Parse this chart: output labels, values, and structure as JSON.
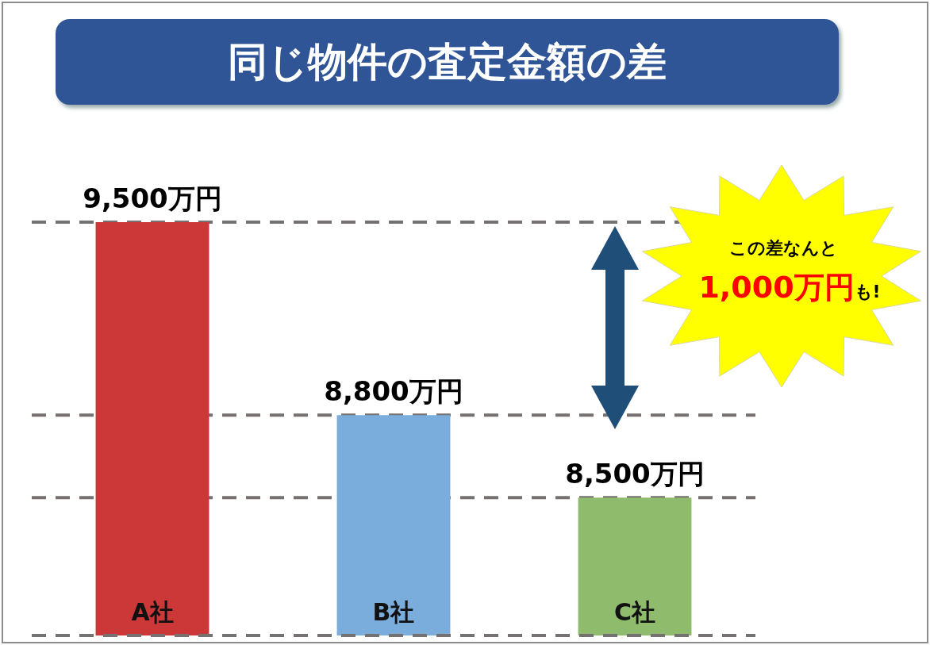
{
  "chart_data": {
    "type": "bar",
    "title": "同じ物件の査定金額の差",
    "categories": [
      "A社",
      "B社",
      "C社"
    ],
    "values": [
      9500,
      8800,
      8500
    ],
    "colors": [
      "#cc3737",
      "#7aaddc",
      "#8fbb6c"
    ],
    "value_labels": [
      "9,500万円",
      "8,800万円",
      "8,500万円"
    ],
    "ylim": [
      8000,
      9500
    ],
    "tick_labels": false,
    "legend": false,
    "ref_lines": [
      {
        "axis": "y",
        "value": 9500,
        "color": "#767171",
        "line_style": "dashed"
      },
      {
        "axis": "y",
        "value": 8800,
        "color": "#767171",
        "line_style": "dashed"
      },
      {
        "axis": "y",
        "value": 8500,
        "color": "#767171",
        "line_style": "dashed"
      }
    ],
    "annotations": [
      "この差なんと",
      "1,000万円",
      "も!"
    ]
  }
}
